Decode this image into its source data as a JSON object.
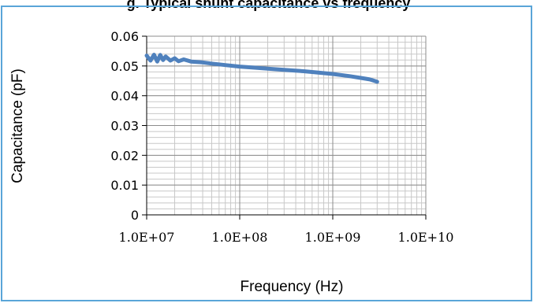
{
  "header": {
    "title": "g. Typical shunt capacitance vs frequency"
  },
  "chart_data": {
    "type": "line",
    "title": "",
    "xlabel": "Frequency (Hz)",
    "ylabel": "Capacitance (pF)",
    "x_scale": "log",
    "xlim": [
      10000000,
      10000000000
    ],
    "ylim": [
      0,
      0.06
    ],
    "x_ticks": [
      10000000,
      100000000,
      1000000000,
      10000000000
    ],
    "x_tick_labels": [
      "1.0E+07",
      "1.0E+08",
      "1.0E+09",
      "1.0E+10"
    ],
    "y_ticks": [
      0,
      0.01,
      0.02,
      0.03,
      0.04,
      0.05,
      0.06
    ],
    "y_tick_labels": [
      "0",
      "0.01",
      "0.02",
      "0.03",
      "0.04",
      "0.05",
      "0.06"
    ],
    "grid": true,
    "legend": "none",
    "series": [
      {
        "color": "#4f81bd",
        "x": [
          10000000,
          11000000,
          12000000,
          13000000,
          14000000,
          15000000,
          16000000,
          18000000,
          20000000,
          22000000,
          25000000,
          30000000,
          40000000,
          50000000,
          70000000,
          100000000,
          150000000,
          200000000,
          300000000,
          500000000,
          700000000,
          1000000000,
          1500000000,
          2000000000,
          2500000000,
          3000000000
        ],
        "values": [
          0.0535,
          0.0518,
          0.0538,
          0.0515,
          0.0537,
          0.052,
          0.0532,
          0.0518,
          0.0526,
          0.0516,
          0.0522,
          0.0515,
          0.0512,
          0.0508,
          0.0503,
          0.0498,
          0.0494,
          0.0491,
          0.0487,
          0.0482,
          0.0478,
          0.0473,
          0.0466,
          0.046,
          0.0455,
          0.0447
        ]
      }
    ]
  }
}
